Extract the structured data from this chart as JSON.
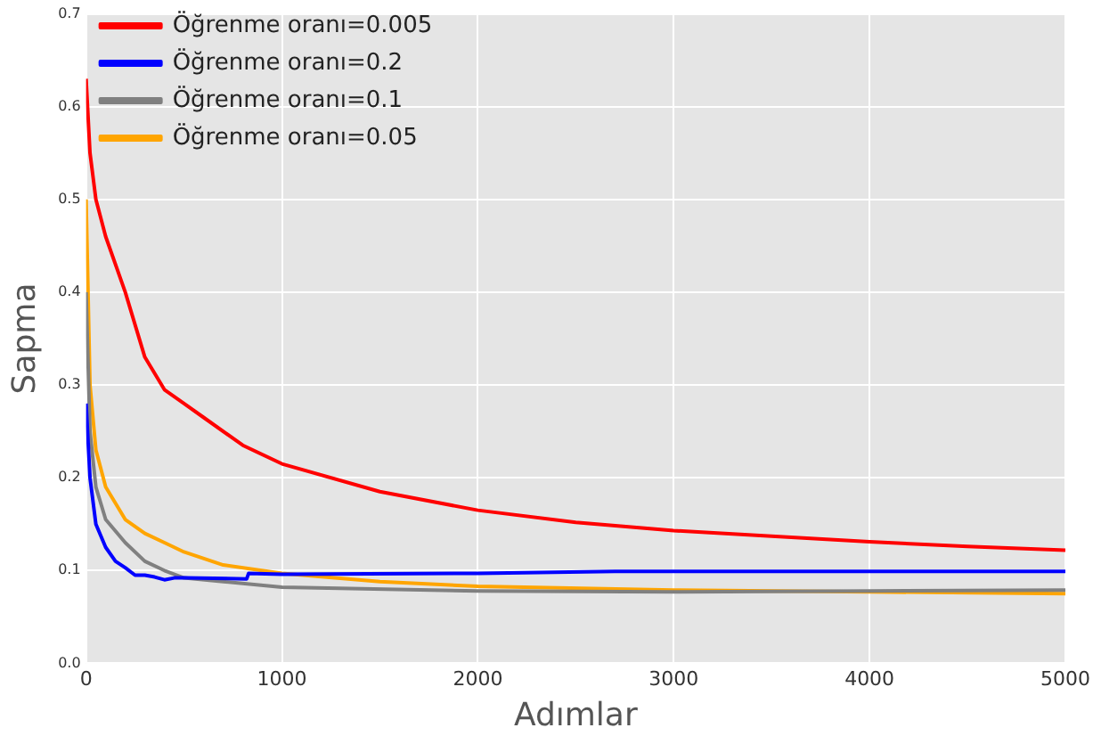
{
  "chart_data": {
    "type": "line",
    "xlabel": "Adımlar",
    "ylabel": "Sapma",
    "xlim": [
      0,
      5000
    ],
    "xticks": [
      0,
      1000,
      2000,
      3000,
      4000,
      5000
    ],
    "ylim": [
      0,
      0.7
    ],
    "yticks": [
      {
        "value": 0,
        "label": "0.0"
      },
      0.1,
      0.2,
      0.3,
      0.4,
      0.5,
      0.6,
      0.7
    ],
    "grid": true,
    "legend": "top left",
    "marker": "none",
    "line_style": "solid",
    "series": [
      {
        "name": "Öğrenme oranı=0.005",
        "color": "#ff0000",
        "x": [
          0,
          20,
          50,
          100,
          200,
          300,
          400,
          500,
          600,
          800,
          1000,
          1500,
          2000,
          2500,
          3000,
          3500,
          4000,
          4500,
          5000
        ],
        "values": [
          0.63,
          0.55,
          0.5,
          0.46,
          0.4,
          0.33,
          0.295,
          0.28,
          0.265,
          0.235,
          0.215,
          0.185,
          0.165,
          0.152,
          0.143,
          0.137,
          0.131,
          0.126,
          0.122
        ]
      },
      {
        "name": "Öğrenme oranı=0.2",
        "color": "#0000ff",
        "x": [
          0,
          20,
          50,
          100,
          150,
          200,
          250,
          300,
          350,
          400,
          450,
          500,
          820,
          830,
          1000,
          2000,
          2700,
          5000
        ],
        "values": [
          0.28,
          0.2,
          0.15,
          0.125,
          0.11,
          0.103,
          0.095,
          0.095,
          0.093,
          0.09,
          0.092,
          0.092,
          0.091,
          0.097,
          0.096,
          0.097,
          0.099,
          0.099
        ]
      },
      {
        "name": "Öğrenme oranı=0.1",
        "color": "#808080",
        "x": [
          0,
          20,
          50,
          100,
          200,
          300,
          400,
          500,
          700,
          1000,
          2000,
          3000,
          4000,
          5000
        ],
        "values": [
          0.4,
          0.25,
          0.19,
          0.155,
          0.13,
          0.11,
          0.1,
          0.092,
          0.088,
          0.082,
          0.078,
          0.077,
          0.078,
          0.079
        ]
      },
      {
        "name": "Öğrenme oranı=0.05",
        "color": "#ffa500",
        "x": [
          0,
          20,
          50,
          100,
          200,
          300,
          400,
          500,
          700,
          1000,
          1500,
          2000,
          3000,
          4000,
          5000
        ],
        "values": [
          0.5,
          0.3,
          0.23,
          0.19,
          0.155,
          0.14,
          0.13,
          0.12,
          0.106,
          0.097,
          0.088,
          0.083,
          0.079,
          0.077,
          0.075
        ]
      }
    ]
  }
}
